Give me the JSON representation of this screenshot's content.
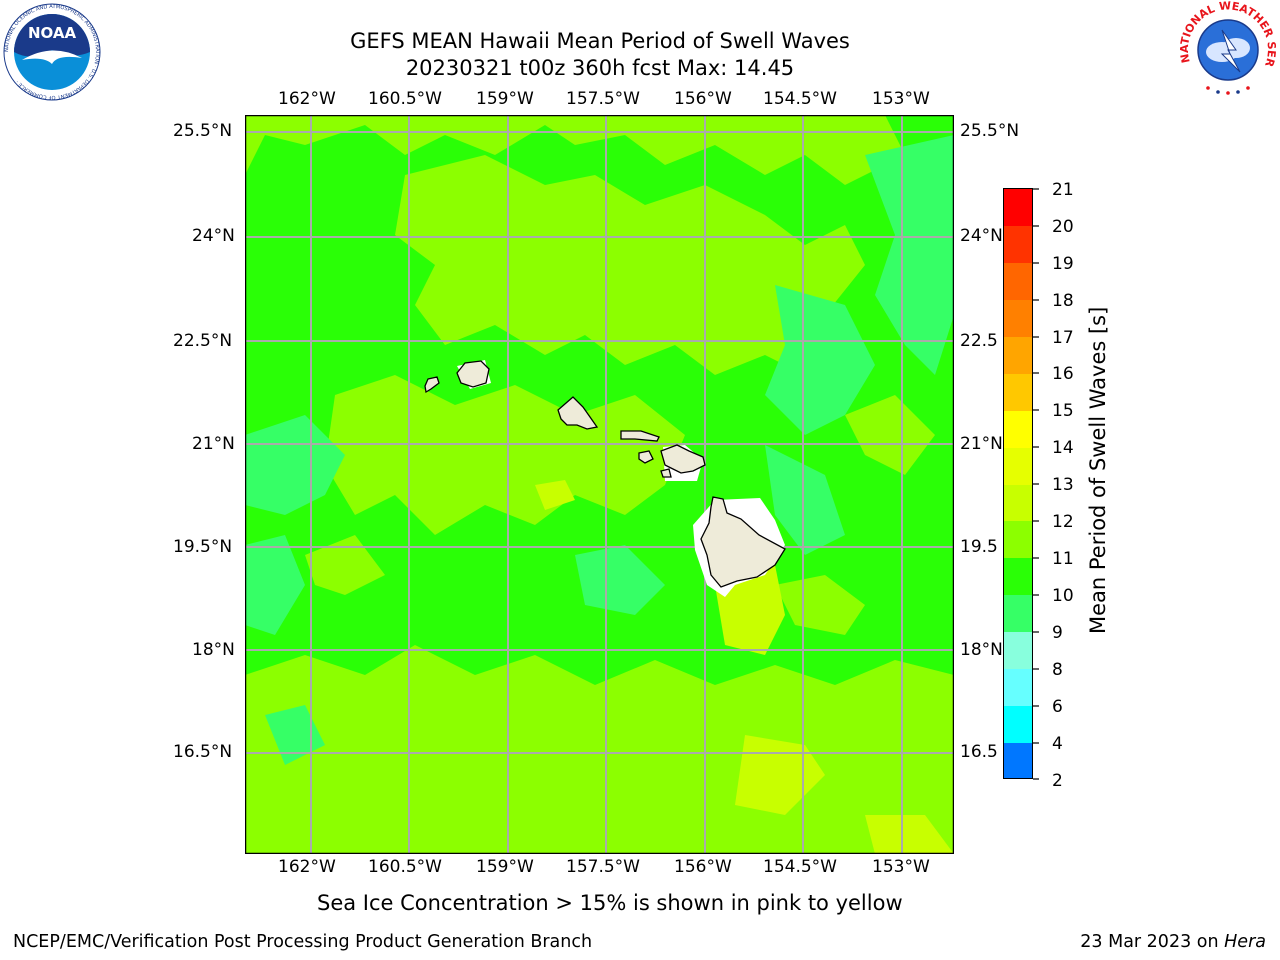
{
  "title": {
    "line1": "GEFS MEAN Hawaii Mean Period of Swell Waves",
    "line2": "20230321 t00z 360h fcst   Max: 14.45"
  },
  "logos": {
    "noaa_text": "NOAA",
    "noaa_ring": "NATIONAL OCEANIC AND ATMOSPHERIC ADMINISTRATION · U.S. DEPARTMENT OF COMMERCE ·",
    "nws_ring": "NATIONAL WEATHER SERVICE"
  },
  "map": {
    "lon_labels": [
      "162°W",
      "160.5°W",
      "159°W",
      "157.5°W",
      "156°W",
      "154.5°W",
      "153°W"
    ],
    "lat_labels_left": [
      "25.5°N",
      "24°N",
      "22.5°N",
      "21°N",
      "19.5°N",
      "18°N",
      "16.5°N"
    ],
    "lat_labels_right": [
      "25.5°N",
      "24°N",
      "22.5",
      "21°N",
      "19.5",
      "18°N",
      "16.5"
    ],
    "grid": true,
    "colors": {
      "land": "#eeebd9",
      "ocean_main": "#2aff06",
      "grid": "#aaaaaa"
    }
  },
  "colorbar": {
    "label": "Mean Period of Swell Waves [s]",
    "ticks": [
      "21",
      "20",
      "19",
      "18",
      "17",
      "16",
      "15",
      "14",
      "13",
      "12",
      "11",
      "10",
      "9",
      "8",
      "6",
      "4",
      "2"
    ],
    "colors": [
      "#ff0000",
      "#ff3300",
      "#ff6600",
      "#ff8000",
      "#ffa500",
      "#ffc800",
      "#ffff00",
      "#e6ff00",
      "#c8ff00",
      "#8cff00",
      "#2aff06",
      "#36ff66",
      "#88ffdd",
      "#66ffff",
      "#00ffff",
      "#0077ff",
      "#0000ff"
    ]
  },
  "note": "Sea Ice Concentration > 15% is shown in pink to yellow",
  "footer": {
    "left": "NCEP/EMC/Verification Post Processing Product Generation Branch",
    "date": "23 Mar 2023 on ",
    "machine": "Hera"
  }
}
